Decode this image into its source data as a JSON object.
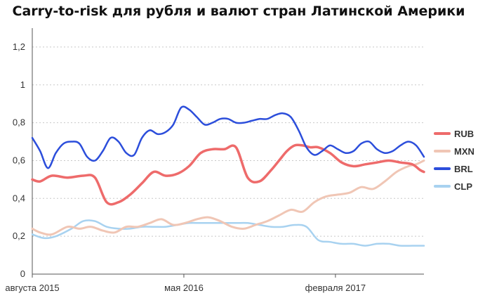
{
  "chart_data": {
    "type": "line",
    "title": "Carry-to-risk для рубля и валют стран Латинской Америки",
    "xlabel": "",
    "ylabel": "",
    "ylim": [
      0,
      1.3
    ],
    "yticks": [
      {
        "value": 0,
        "label": "0"
      },
      {
        "value": 0.2,
        "label": "0,2"
      },
      {
        "value": 0.4,
        "label": "0,4"
      },
      {
        "value": 0.6,
        "label": "0,6"
      },
      {
        "value": 0.8,
        "label": "0,8"
      },
      {
        "value": 1,
        "label": "1"
      },
      {
        "value": 1.2,
        "label": "1,2"
      }
    ],
    "xlim": [
      0,
      100
    ],
    "xticks": [
      {
        "value": 0,
        "label": "августа 2015"
      },
      {
        "value": 38.7,
        "label": "мая 2016"
      },
      {
        "value": 77.4,
        "label": "февраля 2017"
      }
    ],
    "grid": true,
    "legend_position": "right",
    "series": [
      {
        "name": "RUB",
        "color": "#ee6b6b",
        "width": 3.5,
        "x": [
          0,
          2,
          5,
          9,
          13,
          16,
          19,
          22,
          25,
          28,
          31,
          34,
          37,
          40,
          43,
          46,
          49,
          52,
          55,
          58,
          61,
          63,
          65,
          67,
          69,
          71,
          73,
          76,
          79,
          82,
          85,
          88,
          91,
          94,
          97,
          99,
          100
        ],
        "y": [
          0.5,
          0.49,
          0.52,
          0.51,
          0.52,
          0.51,
          0.38,
          0.38,
          0.42,
          0.48,
          0.54,
          0.52,
          0.53,
          0.57,
          0.64,
          0.66,
          0.66,
          0.67,
          0.51,
          0.49,
          0.55,
          0.6,
          0.65,
          0.68,
          0.68,
          0.67,
          0.67,
          0.64,
          0.59,
          0.57,
          0.58,
          0.59,
          0.6,
          0.59,
          0.58,
          0.55,
          0.54
        ]
      },
      {
        "name": "MXN",
        "color": "#f0c6b5",
        "width": 3,
        "x": [
          0,
          2,
          5,
          9,
          12,
          15,
          18,
          21,
          24,
          27,
          30,
          33,
          36,
          39,
          42,
          45,
          48,
          51,
          54,
          57,
          60,
          63,
          66,
          69,
          72,
          75,
          78,
          81,
          84,
          87,
          90,
          93,
          96,
          98,
          100
        ],
        "y": [
          0.24,
          0.22,
          0.21,
          0.25,
          0.24,
          0.25,
          0.23,
          0.22,
          0.25,
          0.25,
          0.27,
          0.29,
          0.26,
          0.27,
          0.29,
          0.3,
          0.28,
          0.25,
          0.24,
          0.26,
          0.28,
          0.31,
          0.34,
          0.33,
          0.38,
          0.41,
          0.42,
          0.43,
          0.46,
          0.45,
          0.49,
          0.54,
          0.57,
          0.58,
          0.6
        ]
      },
      {
        "name": "BRL",
        "color": "#2c4edb",
        "width": 2.5,
        "x": [
          0,
          2,
          4,
          6,
          8,
          10,
          12,
          14,
          16,
          18,
          20,
          22,
          24,
          26,
          28,
          30,
          32,
          34,
          36,
          38,
          40,
          42,
          44,
          46,
          48,
          50,
          52,
          54,
          56,
          58,
          60,
          62,
          64,
          66,
          68,
          70,
          72,
          74,
          76,
          78,
          80,
          82,
          84,
          86,
          88,
          90,
          92,
          94,
          96,
          98,
          100
        ],
        "y": [
          0.72,
          0.65,
          0.56,
          0.64,
          0.69,
          0.7,
          0.69,
          0.62,
          0.6,
          0.65,
          0.72,
          0.7,
          0.64,
          0.63,
          0.72,
          0.76,
          0.74,
          0.75,
          0.79,
          0.88,
          0.87,
          0.83,
          0.79,
          0.8,
          0.82,
          0.82,
          0.8,
          0.8,
          0.81,
          0.82,
          0.82,
          0.84,
          0.85,
          0.83,
          0.76,
          0.67,
          0.63,
          0.65,
          0.68,
          0.66,
          0.64,
          0.65,
          0.69,
          0.7,
          0.66,
          0.64,
          0.65,
          0.68,
          0.7,
          0.68,
          0.62
        ]
      },
      {
        "name": "CLP",
        "color": "#a8d2f0",
        "width": 2.5,
        "x": [
          0,
          3,
          6,
          10,
          13,
          16,
          19,
          22,
          25,
          28,
          31,
          34,
          37,
          40,
          43,
          46,
          49,
          52,
          55,
          58,
          61,
          64,
          67,
          70,
          73,
          76,
          79,
          82,
          85,
          88,
          91,
          94,
          97,
          100
        ],
        "y": [
          0.21,
          0.19,
          0.2,
          0.24,
          0.28,
          0.28,
          0.25,
          0.24,
          0.24,
          0.25,
          0.25,
          0.25,
          0.26,
          0.27,
          0.27,
          0.27,
          0.27,
          0.27,
          0.27,
          0.26,
          0.25,
          0.25,
          0.26,
          0.25,
          0.18,
          0.17,
          0.16,
          0.16,
          0.15,
          0.16,
          0.16,
          0.15,
          0.15,
          0.15
        ]
      }
    ]
  }
}
